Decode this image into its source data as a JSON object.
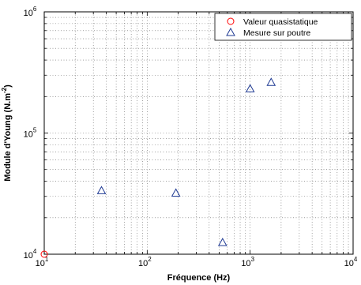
{
  "chart_data": {
    "type": "scatter",
    "x_scale": "log",
    "y_scale": "log",
    "xlim": [
      10,
      10000
    ],
    "ylim": [
      10000,
      1000000
    ],
    "grid": true,
    "legend_position": "top-right",
    "xlabel": "Fréquence (Hz)",
    "ylabel": "Module d'Young (N.m",
    "ylabel_exp": "-2",
    "ylabel_close": ")",
    "x_ticks": [
      {
        "base": "10",
        "exp": "1",
        "value": 10
      },
      {
        "base": "10",
        "exp": "2",
        "value": 100
      },
      {
        "base": "10",
        "exp": "3",
        "value": 1000
      },
      {
        "base": "10",
        "exp": "4",
        "value": 10000
      }
    ],
    "y_ticks": [
      {
        "base": "10",
        "exp": "4",
        "value": 10000
      },
      {
        "base": "10",
        "exp": "5",
        "value": 100000
      },
      {
        "base": "10",
        "exp": "6",
        "value": 1000000
      }
    ],
    "series": [
      {
        "name": "Valeur quasistatique",
        "marker": "circle",
        "color": "#ff0000",
        "points": [
          [
            10,
            10000
          ]
        ]
      },
      {
        "name": "Mesure sur poutre",
        "marker": "triangle",
        "color": "#1f3a93",
        "points": [
          [
            36,
            33500
          ],
          [
            190,
            32000
          ],
          [
            540,
            12500
          ],
          [
            1000,
            232000
          ],
          [
            1600,
            262000
          ]
        ]
      }
    ]
  }
}
